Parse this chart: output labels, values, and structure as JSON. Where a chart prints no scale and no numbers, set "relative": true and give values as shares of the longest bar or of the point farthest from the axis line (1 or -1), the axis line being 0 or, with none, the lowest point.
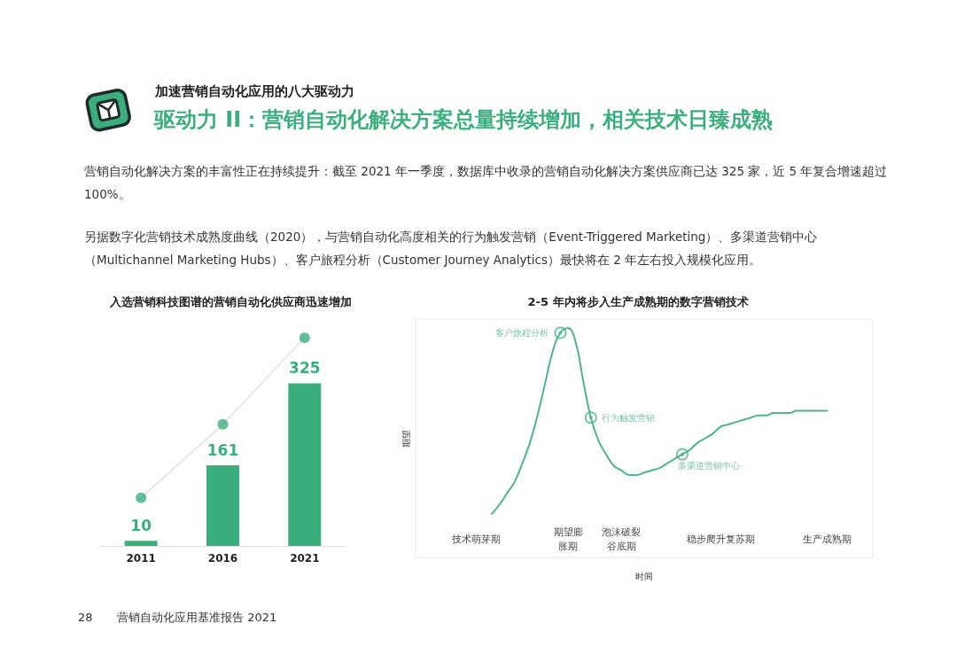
{
  "chart_data": [
    {
      "type": "other",
      "subtitle": "加速营销自动化应用的八大驱动力",
      "title": "驱动力 II：营销自动化解决方案总量持续增加，相关技术日臻成熟",
      "annotations": [
        "营销自动化解决方案的丰富性正在持续提升：截至 2021 年一季度，数据库中收录的营销自动化解决方案供应商已达 325 家，近 5 年复合增速超过 100%。",
        "另据数字化营销技术成熟度曲线（2020），与营销自动化高度相关的行为触发营销（Event-Triggered Marketing）、多渠道营销中心（Multichannel Marketing Hubs）、客户旅程分析（Customer Journey Analytics）最快将在 2 年左右投入规模化应用。",
        "28",
        "营销自动化应用基准报告 2021"
      ]
    },
    {
      "type": "bar",
      "title": "入选营销科技图谱的营销自动化供应商迅速增加",
      "categories": [
        "2011",
        "2016",
        "2021"
      ],
      "tick_labels": "x",
      "series": [
        {
          "type": "bar",
          "color": "#3bae7e",
          "values": [
            10,
            161,
            325
          ],
          "value_labels": [
            "10",
            "161",
            "325"
          ]
        },
        {
          "type": "line",
          "values": [
            96,
            243,
            416
          ],
          "color": "#dcdcdc",
          "marker": "none"
        },
        {
          "type": "scatter",
          "values": [
            96,
            243,
            416
          ],
          "color": "#3bae7e",
          "marker": "circle"
        }
      ]
    },
    {
      "type": "line",
      "title": "2-5 年内将步入生产成熟期的数字营销技术",
      "xlabel": "时间",
      "ylabel": "期望",
      "relative": true,
      "marker": "none",
      "categories": [
        null,
        null,
        null,
        null,
        null,
        null,
        null,
        null,
        "技术萌芽期",
        null,
        null,
        null,
        null,
        null,
        null,
        null,
        null,
        null,
        null,
        null,
        "期望膨胀期",
        null,
        null,
        null,
        null,
        null,
        null,
        "泡沫破裂谷底期",
        null,
        null,
        null,
        null,
        null,
        null,
        null,
        null,
        null,
        null,
        null,
        null,
        "稳步爬升复苏期",
        null,
        null,
        null,
        null,
        null,
        null,
        null,
        null,
        null,
        null,
        null,
        null,
        null,
        "生产成熟期",
        null,
        null,
        null,
        null,
        null,
        null
      ],
      "series": [
        {
          "type": "line",
          "color": "#4fb48a",
          "values": [
            null,
            null,
            null,
            null,
            null,
            null,
            null,
            null,
            null,
            null,
            0.19,
            0.23,
            0.28,
            0.33,
            0.41,
            0.5,
            0.62,
            0.76,
            0.9,
            0.98,
            1,
            0.94,
            0.77,
            0.61,
            0.51,
            0.45,
            0.4,
            0.38,
            0.36,
            0.36,
            0.37,
            0.38,
            0.39,
            0.41,
            0.43,
            0.45,
            0.47,
            0.5,
            0.52,
            0.54,
            0.57,
            0.58,
            0.59,
            0.6,
            0.61,
            0.62,
            0.62,
            0.63,
            0.63,
            0.63,
            0.64,
            0.64,
            0.64,
            0.64,
            0.64,
            null,
            null,
            null,
            null,
            null,
            null
          ]
        },
        {
          "type": "scatter",
          "color": "#4fb48a",
          "marker": "circle",
          "values": [
            null,
            null,
            null,
            null,
            null,
            null,
            null,
            null,
            null,
            null,
            null,
            null,
            null,
            null,
            null,
            null,
            null,
            null,
            null,
            0.98,
            null,
            null,
            null,
            0.61,
            null,
            null,
            null,
            null,
            null,
            null,
            null,
            null,
            null,
            null,
            null,
            0.45,
            null,
            null,
            null,
            null,
            null,
            null,
            null,
            null,
            null,
            null,
            null,
            null,
            null,
            null,
            null,
            null,
            null,
            null,
            null,
            null,
            null,
            null,
            null,
            null,
            null
          ]
        }
      ],
      "annotations": [
        "客户旅程分析",
        "行为触发营销",
        "多渠道营销中心"
      ]
    }
  ]
}
